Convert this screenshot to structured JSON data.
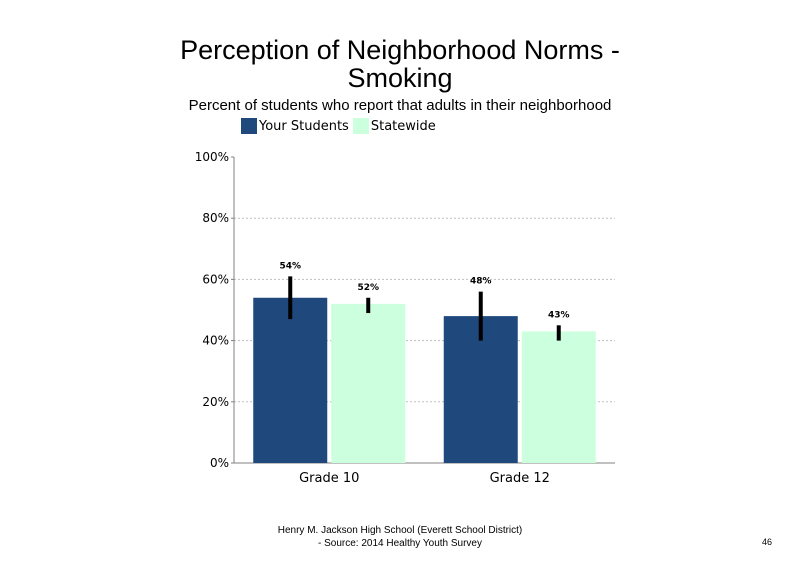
{
  "page": {
    "footer_line1": "Henry M. Jackson High School (Everett School District)",
    "footer_line2": "- Source: 2014 Healthy Youth Survey",
    "page_number": "46"
  },
  "colors": {
    "your_students": "#1f497d",
    "statewide": "#ccffdd",
    "error_bar": "#000000",
    "gridline": "#bfbfbf"
  },
  "chart_data": {
    "type": "bar",
    "title": "Perception of Neighborhood Norms - Smoking",
    "subtitle": "Percent of students who report that adults in their neighborhood",
    "categories": [
      "Grade 10",
      "Grade 12"
    ],
    "series": [
      {
        "name": "Your Students",
        "values": [
          54,
          48
        ],
        "labels": [
          "54%",
          "48%"
        ],
        "error_low": [
          47,
          40
        ],
        "error_high": [
          61,
          56
        ]
      },
      {
        "name": "Statewide",
        "values": [
          52,
          43
        ],
        "labels": [
          "52%",
          "43%"
        ],
        "error_low": [
          49,
          40
        ],
        "error_high": [
          54,
          45
        ]
      }
    ],
    "y_ticks": [
      {
        "value": 0,
        "label": "0%"
      },
      {
        "value": 20,
        "label": "20%"
      },
      {
        "value": 40,
        "label": "40%"
      },
      {
        "value": 60,
        "label": "60%"
      },
      {
        "value": 80,
        "label": "80%"
      },
      {
        "value": 100,
        "label": "100%"
      }
    ],
    "ylim": [
      0,
      100
    ],
    "gridlines": true,
    "legend_position": "top"
  }
}
